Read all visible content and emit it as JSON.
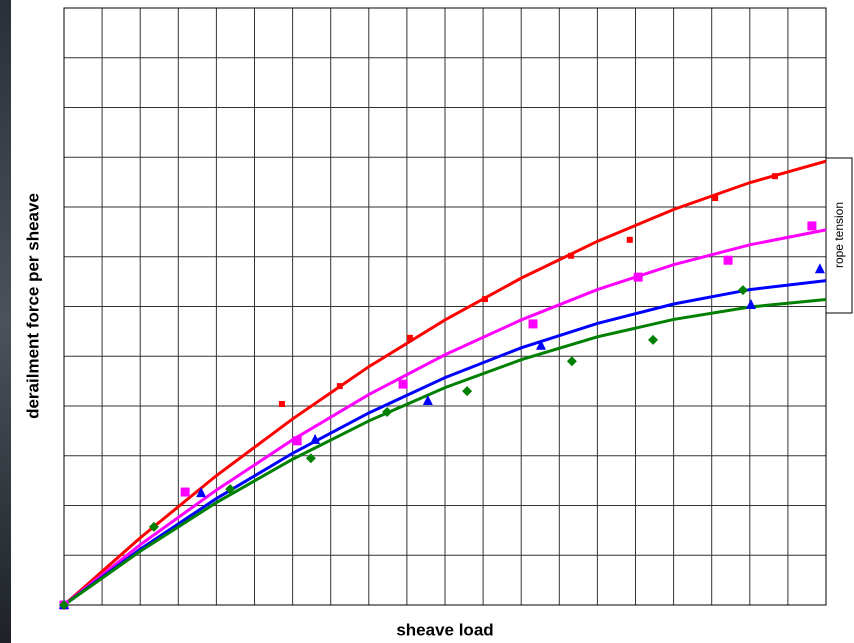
{
  "chart_data": {
    "type": "scatter",
    "xlabel": "sheave load",
    "ylabel": "derailment force per sheave",
    "legend_title": "rope tension",
    "xlim": [
      0,
      20
    ],
    "ylim": [
      0,
      12
    ],
    "xticks": [
      0,
      1,
      2,
      3,
      4,
      5,
      6,
      7,
      8,
      9,
      10,
      11,
      12,
      13,
      14,
      15,
      16,
      17,
      18,
      19,
      20
    ],
    "yticks": [
      0,
      1,
      2,
      3,
      4,
      5,
      6,
      7,
      8,
      9,
      10,
      11,
      12
    ],
    "grid": true,
    "fit_x": [
      0,
      2,
      4,
      6,
      8,
      10,
      12,
      14,
      16,
      18,
      20
    ],
    "series": [
      {
        "color": "#ff0000",
        "marker": "small-square",
        "x": [
          0,
          5.72,
          7.24,
          9.08,
          11.05,
          13.31,
          14.85,
          17.09,
          18.66
        ],
        "values": [
          0,
          4.04,
          4.4,
          5.37,
          6.15,
          7.02,
          7.34,
          8.18,
          8.62
        ],
        "fit_values": [
          0,
          1.35,
          2.6,
          3.74,
          4.79,
          5.73,
          6.57,
          7.31,
          7.95,
          8.49,
          8.92
        ]
      },
      {
        "color": "#ff00ff",
        "marker": "square",
        "x": [
          0,
          3.18,
          6.12,
          8.9,
          12.31,
          15.07,
          17.43,
          19.63
        ],
        "values": [
          0,
          2.27,
          3.3,
          4.44,
          5.65,
          6.59,
          6.93,
          7.62
        ],
        "fit_values": [
          0,
          1.21,
          2.31,
          3.32,
          4.23,
          5.03,
          5.73,
          6.34,
          6.84,
          7.24,
          7.54
        ]
      },
      {
        "color": "#0000ff",
        "marker": "triangle",
        "x": [
          0,
          3.6,
          6.59,
          9.55,
          12.52,
          18.03,
          19.84
        ],
        "values": [
          0,
          2.25,
          3.32,
          4.1,
          5.21,
          6.03,
          6.75
        ],
        "fit_values": [
          0,
          1.12,
          2.14,
          3.05,
          3.86,
          4.57,
          5.17,
          5.66,
          6.05,
          6.34,
          6.52
        ]
      },
      {
        "color": "#008000",
        "marker": "diamond",
        "x": [
          0,
          2.36,
          4.36,
          6.48,
          8.48,
          10.58,
          13.33,
          15.46,
          17.82
        ],
        "values": [
          0,
          1.57,
          2.33,
          2.95,
          3.88,
          4.3,
          4.9,
          5.33,
          6.33
        ],
        "fit_values": [
          0,
          1.08,
          2.06,
          2.93,
          3.7,
          4.37,
          4.93,
          5.39,
          5.74,
          5.99,
          6.14
        ]
      }
    ]
  }
}
